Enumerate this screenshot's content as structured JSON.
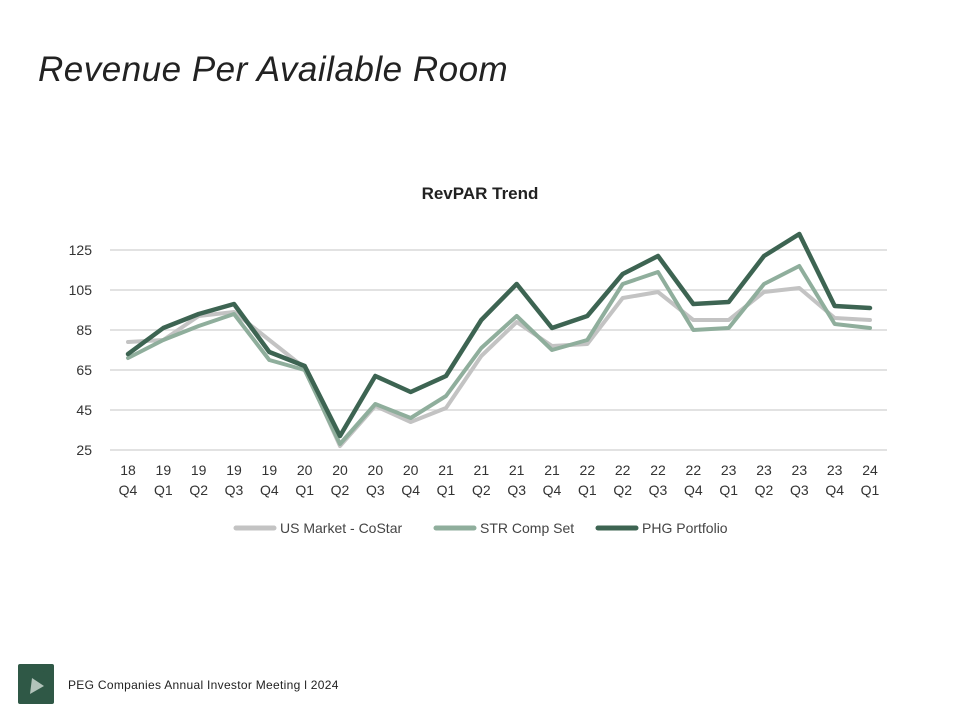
{
  "slide": {
    "title": "Revenue Per Available Room",
    "footer": "PEG Companies Annual Investor Meeting l 2024"
  },
  "colors": {
    "us_market": "#c3c3c3",
    "str_comp": "#8fae9c",
    "phg": "#3d6452",
    "gridline": "#d9d9d9",
    "logo": "#2f5846"
  },
  "chart_data": {
    "type": "line",
    "title": "RevPAR Trend",
    "xlabel": "",
    "ylabel": "",
    "ylim": [
      25,
      125
    ],
    "yticks": [
      25,
      45,
      65,
      85,
      105,
      125
    ],
    "grid": true,
    "legend": "bottom",
    "categories": [
      [
        "18",
        "Q4"
      ],
      [
        "19",
        "Q1"
      ],
      [
        "19",
        "Q2"
      ],
      [
        "19",
        "Q3"
      ],
      [
        "19",
        "Q4"
      ],
      [
        "20",
        "Q1"
      ],
      [
        "20",
        "Q2"
      ],
      [
        "20",
        "Q3"
      ],
      [
        "20",
        "Q4"
      ],
      [
        "21",
        "Q1"
      ],
      [
        "21",
        "Q2"
      ],
      [
        "21",
        "Q3"
      ],
      [
        "21",
        "Q4"
      ],
      [
        "22",
        "Q1"
      ],
      [
        "22",
        "Q2"
      ],
      [
        "22",
        "Q3"
      ],
      [
        "22",
        "Q4"
      ],
      [
        "23",
        "Q1"
      ],
      [
        "23",
        "Q2"
      ],
      [
        "23",
        "Q3"
      ],
      [
        "23",
        "Q4"
      ],
      [
        "24",
        "Q1"
      ]
    ],
    "series": [
      {
        "name": "US Market - CoStar",
        "color_key": "us_market",
        "values": [
          79,
          80,
          92,
          94,
          80,
          66,
          27,
          47,
          39,
          46,
          72,
          89,
          77,
          78,
          101,
          104,
          90,
          90,
          104,
          106,
          91,
          90
        ]
      },
      {
        "name": "STR Comp Set",
        "color_key": "str_comp",
        "values": [
          71,
          80,
          87,
          93,
          70,
          65,
          28,
          48,
          41,
          52,
          76,
          92,
          75,
          80,
          108,
          114,
          85,
          86,
          108,
          117,
          88,
          86
        ]
      },
      {
        "name": "PHG Portfolio",
        "color_key": "phg",
        "values": [
          73,
          86,
          93,
          98,
          74,
          67,
          32,
          62,
          54,
          62,
          90,
          108,
          86,
          92,
          113,
          122,
          98,
          99,
          122,
          133,
          97,
          96
        ]
      }
    ]
  }
}
